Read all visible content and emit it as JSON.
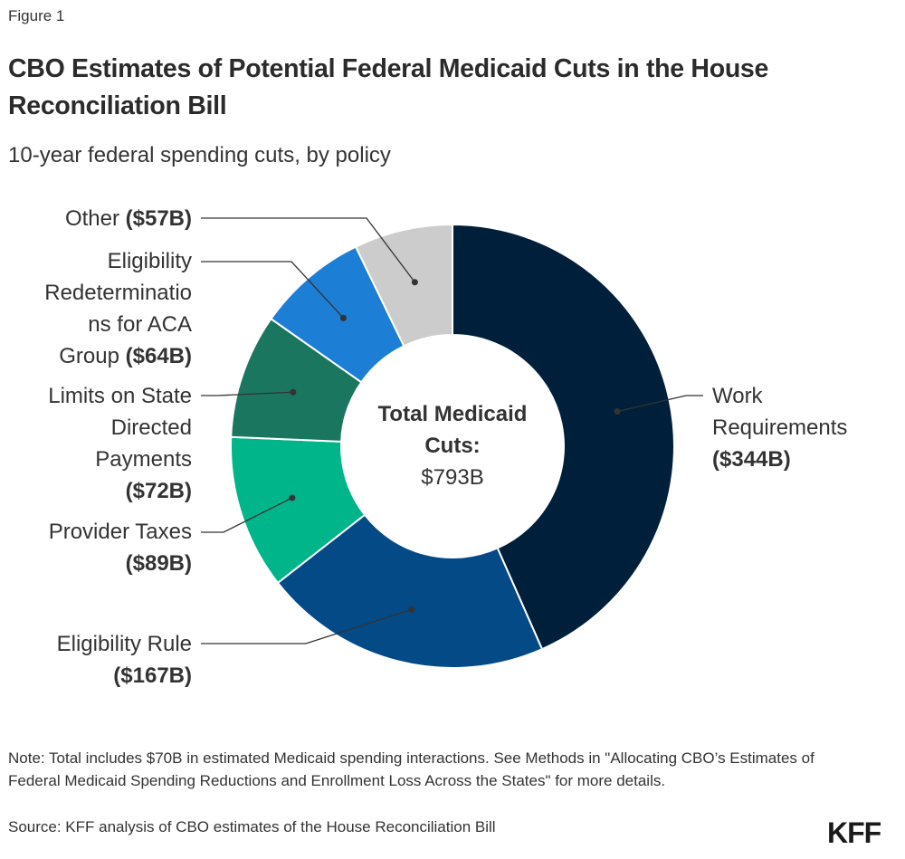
{
  "figure_label": "Figure 1",
  "title": "CBO Estimates of Potential Federal Medicaid Cuts in the House Reconciliation Bill",
  "subtitle": "10-year federal spending cuts, by policy",
  "center": {
    "title": "Total Medicaid Cuts:",
    "value": "$793B"
  },
  "chart_data": {
    "type": "pie",
    "variant": "donut",
    "title": "CBO Estimates of Potential Federal Medicaid Cuts in the House Reconciliation Bill",
    "subtitle": "10-year federal spending cuts, by policy",
    "units": "billions USD",
    "total": 793,
    "start": "top",
    "direction": "clockwise",
    "slices": [
      {
        "name": "Work Requirements",
        "value": 344,
        "value_label": "($344B)",
        "color": "#001f3a",
        "label_lines": [
          "Work",
          "Requirements"
        ],
        "label_side": "right"
      },
      {
        "name": "Eligibility Rule",
        "value": 167,
        "value_label": "($167B)",
        "color": "#034a87",
        "label_lines": [
          "Eligibility Rule"
        ],
        "label_side": "left"
      },
      {
        "name": "Provider Taxes",
        "value": 89,
        "value_label": "($89B)",
        "color": "#00b589",
        "label_lines": [
          "Provider Taxes"
        ],
        "label_side": "left"
      },
      {
        "name": "Limits on State Directed Payments",
        "value": 72,
        "value_label": "($72B)",
        "color": "#1b7660",
        "label_lines": [
          "Limits on State",
          "Directed",
          "Payments"
        ],
        "label_side": "left"
      },
      {
        "name": "Eligibility Redeterminations for ACA Group",
        "value": 64,
        "value_label": "($64B)",
        "color": "#1d7ed6",
        "label_lines": [
          "Eligibility",
          "Redeterminatio",
          "ns for ACA",
          "Group"
        ],
        "label_side": "left"
      },
      {
        "name": "Other",
        "value": 57,
        "value_label": "($57B)",
        "color": "#cccccc",
        "label_lines": [
          "Other"
        ],
        "label_side": "left"
      }
    ],
    "center_label": "Total Medicaid Cuts: $793B",
    "legend": "none"
  },
  "note": "Note: Total includes $70B in estimated Medicaid spending interactions. See Methods in \"Allocating CBO’s Estimates of Federal Medicaid Spending Reductions and Enrollment Loss Across the States\" for more details.",
  "source": "Source: KFF analysis of CBO estimates of the House Reconciliation Bill",
  "logo": "KFF"
}
